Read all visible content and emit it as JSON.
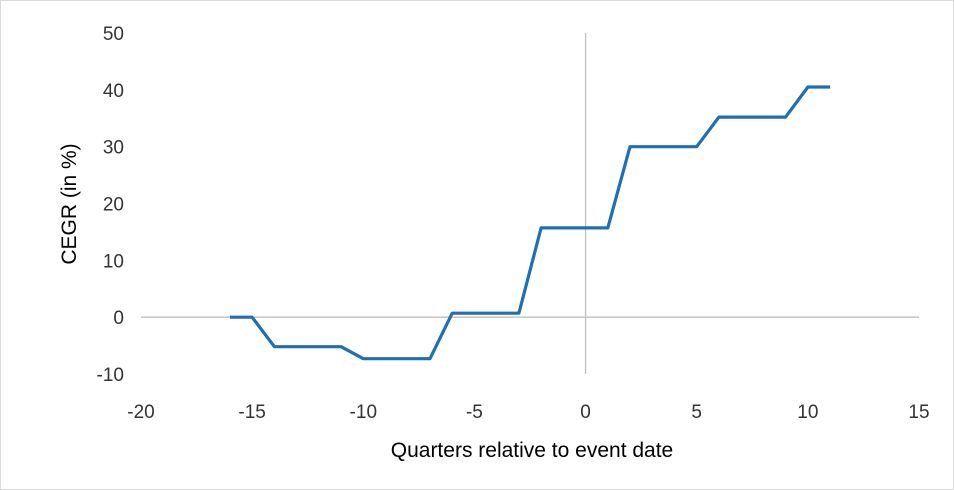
{
  "chart_data": {
    "type": "line",
    "title": "",
    "xlabel": "Quarters relative to event date",
    "ylabel": "CEGR (in %)",
    "xlim": [
      -20,
      15
    ],
    "ylim": [
      -10,
      50
    ],
    "xticks": [
      -20,
      -15,
      -10,
      -5,
      0,
      5,
      10,
      15
    ],
    "yticks": [
      -10,
      0,
      10,
      20,
      30,
      40,
      50
    ],
    "grid": false,
    "legend": "none",
    "line_color": "#1f6fb5",
    "series": [
      {
        "x": [
          -16,
          -15,
          -14,
          -13,
          -12,
          -11,
          -10,
          -9,
          -8,
          -7,
          -6,
          -5,
          -4,
          -3,
          -2,
          -1,
          0,
          1,
          2,
          3,
          4,
          5,
          6,
          7,
          8,
          9,
          10,
          11
        ],
        "values": [
          0,
          0,
          -5.2,
          -5.2,
          -5.2,
          -5.2,
          -7.3,
          -7.3,
          -7.3,
          -7.3,
          0.7,
          0.7,
          0.7,
          0.7,
          15.7,
          15.7,
          15.7,
          15.7,
          30,
          30,
          30,
          30,
          35.2,
          35.2,
          35.2,
          35.2,
          40.5,
          40.5
        ]
      }
    ]
  }
}
